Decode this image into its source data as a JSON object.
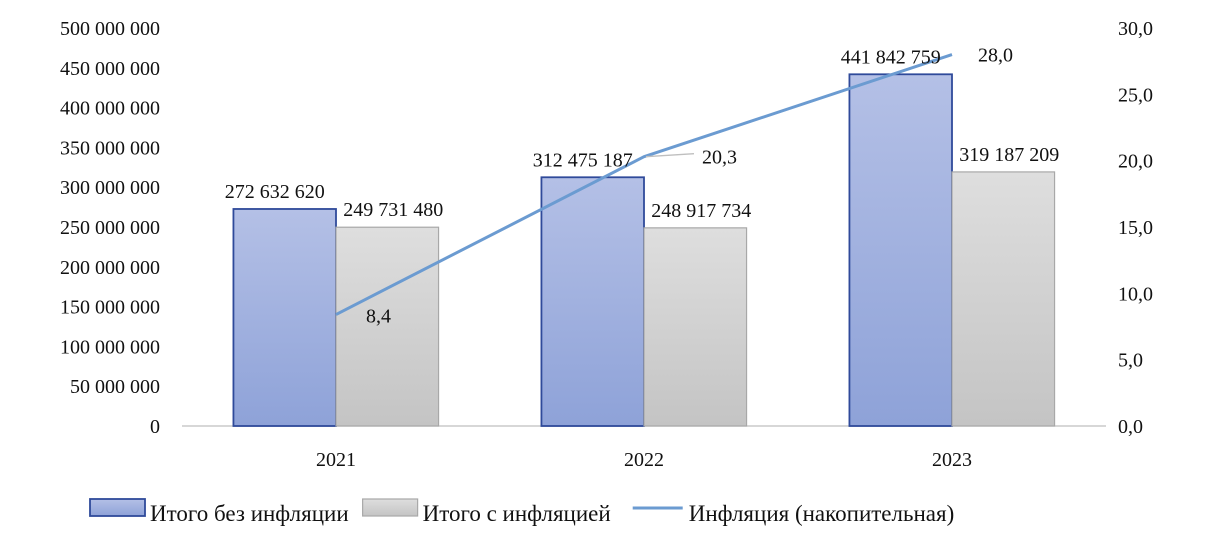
{
  "chart_data": {
    "type": "bar",
    "categories": [
      "2021",
      "2022",
      "2023"
    ],
    "series": [
      {
        "name": "Итого без инфляции",
        "type": "bar",
        "axis": "left",
        "values": [
          272632620,
          312475187,
          441842759
        ],
        "labels": [
          "272 632 620",
          "312 475 187",
          "441 842 759"
        ],
        "color": "#8fa3d9"
      },
      {
        "name": "Итого с инфляцией",
        "type": "bar",
        "axis": "left",
        "values": [
          249731480,
          248917734,
          319187209
        ],
        "labels": [
          "249 731 480",
          "248 917 734",
          "319 187 209"
        ],
        "color": "#cfcfcf"
      },
      {
        "name": "Инфляция (накопительная)",
        "type": "line",
        "axis": "right",
        "values": [
          8.4,
          20.3,
          28.0
        ],
        "labels": [
          "8,4",
          "20,3",
          "28,0"
        ],
        "color": "#6b9bd1"
      }
    ],
    "y_left": {
      "min": 0,
      "max": 500000000,
      "ticks": [
        "0",
        "50 000 000",
        "100 000 000",
        "150 000 000",
        "200 000 000",
        "250 000 000",
        "300 000 000",
        "350 000 000",
        "400 000 000",
        "450 000 000",
        "500 000 000"
      ]
    },
    "y_right": {
      "min": 0,
      "max": 30,
      "ticks": [
        "0,0",
        "5,0",
        "10,0",
        "15,0",
        "20,0",
        "25,0",
        "30,0"
      ]
    },
    "legend_position": "bottom",
    "grid": false
  }
}
